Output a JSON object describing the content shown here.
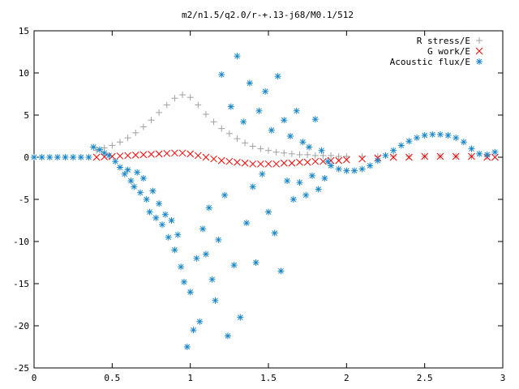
{
  "chart_data": {
    "type": "scatter",
    "title": "m2/n1.5/q2.0/r-+.13-j68/M0.1/512",
    "xlabel": "",
    "ylabel": "",
    "xlim": [
      0,
      3
    ],
    "ylim": [
      -25,
      15
    ],
    "xticks": [
      "0",
      "0.5",
      "1",
      "1.5",
      "2",
      "2.5",
      "3"
    ],
    "yticks": [
      "15",
      "10",
      "5",
      "0",
      "-5",
      "-10",
      "-15",
      "-20",
      "-25"
    ],
    "grid": false,
    "legend_position": "top-right",
    "series": [
      {
        "name": "R stress/E",
        "marker": "plus",
        "color": "#a0a0a0",
        "points": [
          [
            0.4,
            0.8
          ],
          [
            0.45,
            1.1
          ],
          [
            0.5,
            1.4
          ],
          [
            0.55,
            1.8
          ],
          [
            0.6,
            2.3
          ],
          [
            0.65,
            2.9
          ],
          [
            0.7,
            3.6
          ],
          [
            0.75,
            4.4
          ],
          [
            0.8,
            5.3
          ],
          [
            0.85,
            6.2
          ],
          [
            0.9,
            7.0
          ],
          [
            0.95,
            7.4
          ],
          [
            1.0,
            7.1
          ],
          [
            1.05,
            6.2
          ],
          [
            1.1,
            5.1
          ],
          [
            1.15,
            4.2
          ],
          [
            1.2,
            3.4
          ],
          [
            1.25,
            2.8
          ],
          [
            1.3,
            2.2
          ],
          [
            1.35,
            1.7
          ],
          [
            1.4,
            1.3
          ],
          [
            1.45,
            1.0
          ],
          [
            1.5,
            0.8
          ],
          [
            1.55,
            0.6
          ],
          [
            1.6,
            0.5
          ],
          [
            1.65,
            0.4
          ],
          [
            1.7,
            0.3
          ],
          [
            1.75,
            0.3
          ],
          [
            1.8,
            0.2
          ],
          [
            1.85,
            0.2
          ],
          [
            1.9,
            0.2
          ],
          [
            1.95,
            0.1
          ],
          [
            2.0,
            0.1
          ],
          [
            2.1,
            0.1
          ],
          [
            2.2,
            0.1
          ],
          [
            2.3,
            0.1
          ],
          [
            2.4,
            0.1
          ],
          [
            2.5,
            0.1
          ],
          [
            2.6,
            0.1
          ],
          [
            2.7,
            0.1
          ],
          [
            2.8,
            0.1
          ],
          [
            2.9,
            0.1
          ]
        ]
      },
      {
        "name": "G work/E",
        "marker": "cross",
        "color": "#ff0000",
        "points": [
          [
            0.4,
            0.0
          ],
          [
            0.45,
            0.05
          ],
          [
            0.5,
            0.1
          ],
          [
            0.55,
            0.15
          ],
          [
            0.6,
            0.2
          ],
          [
            0.65,
            0.25
          ],
          [
            0.7,
            0.3
          ],
          [
            0.75,
            0.35
          ],
          [
            0.8,
            0.4
          ],
          [
            0.85,
            0.45
          ],
          [
            0.9,
            0.5
          ],
          [
            0.95,
            0.5
          ],
          [
            1.0,
            0.4
          ],
          [
            1.05,
            0.2
          ],
          [
            1.1,
            0.0
          ],
          [
            1.15,
            -0.2
          ],
          [
            1.2,
            -0.4
          ],
          [
            1.25,
            -0.5
          ],
          [
            1.3,
            -0.6
          ],
          [
            1.35,
            -0.7
          ],
          [
            1.4,
            -0.8
          ],
          [
            1.45,
            -0.8
          ],
          [
            1.5,
            -0.8
          ],
          [
            1.55,
            -0.8
          ],
          [
            1.6,
            -0.7
          ],
          [
            1.65,
            -0.7
          ],
          [
            1.7,
            -0.6
          ],
          [
            1.75,
            -0.6
          ],
          [
            1.8,
            -0.5
          ],
          [
            1.85,
            -0.5
          ],
          [
            1.9,
            -0.4
          ],
          [
            1.95,
            -0.4
          ],
          [
            2.0,
            -0.3
          ],
          [
            2.1,
            -0.2
          ],
          [
            2.2,
            -0.1
          ],
          [
            2.3,
            0.0
          ],
          [
            2.4,
            0.0
          ],
          [
            2.5,
            0.1
          ],
          [
            2.6,
            0.1
          ],
          [
            2.7,
            0.1
          ],
          [
            2.8,
            0.1
          ],
          [
            2.9,
            0.0
          ],
          [
            2.95,
            0.0
          ]
        ]
      },
      {
        "name": "Acoustic flux/E",
        "marker": "star",
        "color": "#1a86c8",
        "points": [
          [
            0.0,
            0.0
          ],
          [
            0.05,
            0.0
          ],
          [
            0.1,
            0.0
          ],
          [
            0.15,
            0.0
          ],
          [
            0.2,
            0.0
          ],
          [
            0.25,
            0.0
          ],
          [
            0.3,
            0.0
          ],
          [
            0.35,
            0.0
          ],
          [
            0.38,
            1.2
          ],
          [
            0.42,
            0.9
          ],
          [
            0.45,
            0.5
          ],
          [
            0.48,
            0.2
          ],
          [
            0.52,
            -0.5
          ],
          [
            0.55,
            -1.2
          ],
          [
            0.58,
            -2.0
          ],
          [
            0.6,
            -1.5
          ],
          [
            0.62,
            -2.8
          ],
          [
            0.64,
            -3.5
          ],
          [
            0.66,
            -1.8
          ],
          [
            0.68,
            -4.2
          ],
          [
            0.7,
            -2.5
          ],
          [
            0.72,
            -5.0
          ],
          [
            0.74,
            -6.5
          ],
          [
            0.76,
            -4.0
          ],
          [
            0.78,
            -7.2
          ],
          [
            0.8,
            -5.5
          ],
          [
            0.82,
            -8.0
          ],
          [
            0.84,
            -6.8
          ],
          [
            0.86,
            -9.5
          ],
          [
            0.88,
            -7.5
          ],
          [
            0.9,
            -11.0
          ],
          [
            0.92,
            -9.2
          ],
          [
            0.94,
            -13.0
          ],
          [
            0.96,
            -14.8
          ],
          [
            0.98,
            -22.5
          ],
          [
            1.0,
            -16.0
          ],
          [
            1.02,
            -20.5
          ],
          [
            1.04,
            -12.0
          ],
          [
            1.06,
            -19.5
          ],
          [
            1.08,
            -8.5
          ],
          [
            1.1,
            -11.5
          ],
          [
            1.12,
            -6.0
          ],
          [
            1.14,
            -14.5
          ],
          [
            1.16,
            -17.0
          ],
          [
            1.18,
            -9.8
          ],
          [
            1.2,
            9.8
          ],
          [
            1.22,
            -4.5
          ],
          [
            1.24,
            -21.2
          ],
          [
            1.26,
            6.0
          ],
          [
            1.28,
            -12.8
          ],
          [
            1.3,
            12.0
          ],
          [
            1.32,
            -19.0
          ],
          [
            1.34,
            4.2
          ],
          [
            1.36,
            -7.8
          ],
          [
            1.38,
            8.8
          ],
          [
            1.4,
            -3.5
          ],
          [
            1.42,
            -12.5
          ],
          [
            1.44,
            5.5
          ],
          [
            1.46,
            -2.0
          ],
          [
            1.48,
            7.8
          ],
          [
            1.5,
            -6.5
          ],
          [
            1.52,
            3.2
          ],
          [
            1.54,
            -9.0
          ],
          [
            1.56,
            9.6
          ],
          [
            1.58,
            -13.5
          ],
          [
            1.6,
            4.4
          ],
          [
            1.62,
            -2.8
          ],
          [
            1.64,
            2.5
          ],
          [
            1.66,
            -5.0
          ],
          [
            1.68,
            5.5
          ],
          [
            1.7,
            -3.0
          ],
          [
            1.72,
            1.8
          ],
          [
            1.74,
            -4.5
          ],
          [
            1.76,
            1.2
          ],
          [
            1.78,
            -2.2
          ],
          [
            1.8,
            4.5
          ],
          [
            1.82,
            -3.8
          ],
          [
            1.84,
            0.8
          ],
          [
            1.86,
            -2.5
          ],
          [
            1.88,
            -0.5
          ],
          [
            1.9,
            -1.0
          ],
          [
            1.95,
            -1.4
          ],
          [
            2.0,
            -1.6
          ],
          [
            2.05,
            -1.6
          ],
          [
            2.1,
            -1.4
          ],
          [
            2.15,
            -1.0
          ],
          [
            2.2,
            -0.4
          ],
          [
            2.25,
            0.2
          ],
          [
            2.3,
            0.8
          ],
          [
            2.35,
            1.4
          ],
          [
            2.4,
            1.9
          ],
          [
            2.45,
            2.3
          ],
          [
            2.5,
            2.6
          ],
          [
            2.55,
            2.7
          ],
          [
            2.6,
            2.7
          ],
          [
            2.65,
            2.6
          ],
          [
            2.7,
            2.3
          ],
          [
            2.75,
            1.8
          ],
          [
            2.8,
            1.0
          ],
          [
            2.85,
            0.4
          ],
          [
            2.9,
            0.3
          ],
          [
            2.95,
            0.6
          ]
        ]
      }
    ]
  }
}
